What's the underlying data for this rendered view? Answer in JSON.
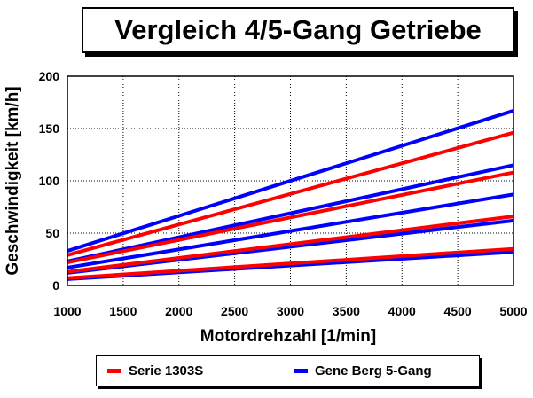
{
  "chart_data": {
    "type": "line",
    "title": "Vergleich 4/5-Gang Getriebe",
    "xlabel": "Motordrehzahl [1/min]",
    "ylabel": "Geschwindigkeit [km/h]",
    "xlim": [
      1000,
      5000
    ],
    "ylim": [
      0,
      200
    ],
    "xticks": [
      "1000",
      "1500",
      "2000",
      "2500",
      "3000",
      "3500",
      "4000",
      "4500",
      "5000"
    ],
    "yticks": [
      "0",
      "50",
      "100",
      "150",
      "200"
    ],
    "grid": true,
    "legend_placement": "bottom",
    "x": [
      1000,
      5000
    ],
    "series": [
      {
        "name": "Serie 1303S",
        "color": "#ff0000",
        "gears": [
          [
            7,
            35
          ],
          [
            13,
            66
          ],
          [
            22,
            108
          ],
          [
            29,
            146
          ]
        ]
      },
      {
        "name": "Gene Berg 5-Gang",
        "color": "#0000ff",
        "gears": [
          [
            6,
            32
          ],
          [
            12,
            62
          ],
          [
            17,
            87
          ],
          [
            23,
            115
          ],
          [
            33,
            167
          ]
        ]
      }
    ]
  }
}
